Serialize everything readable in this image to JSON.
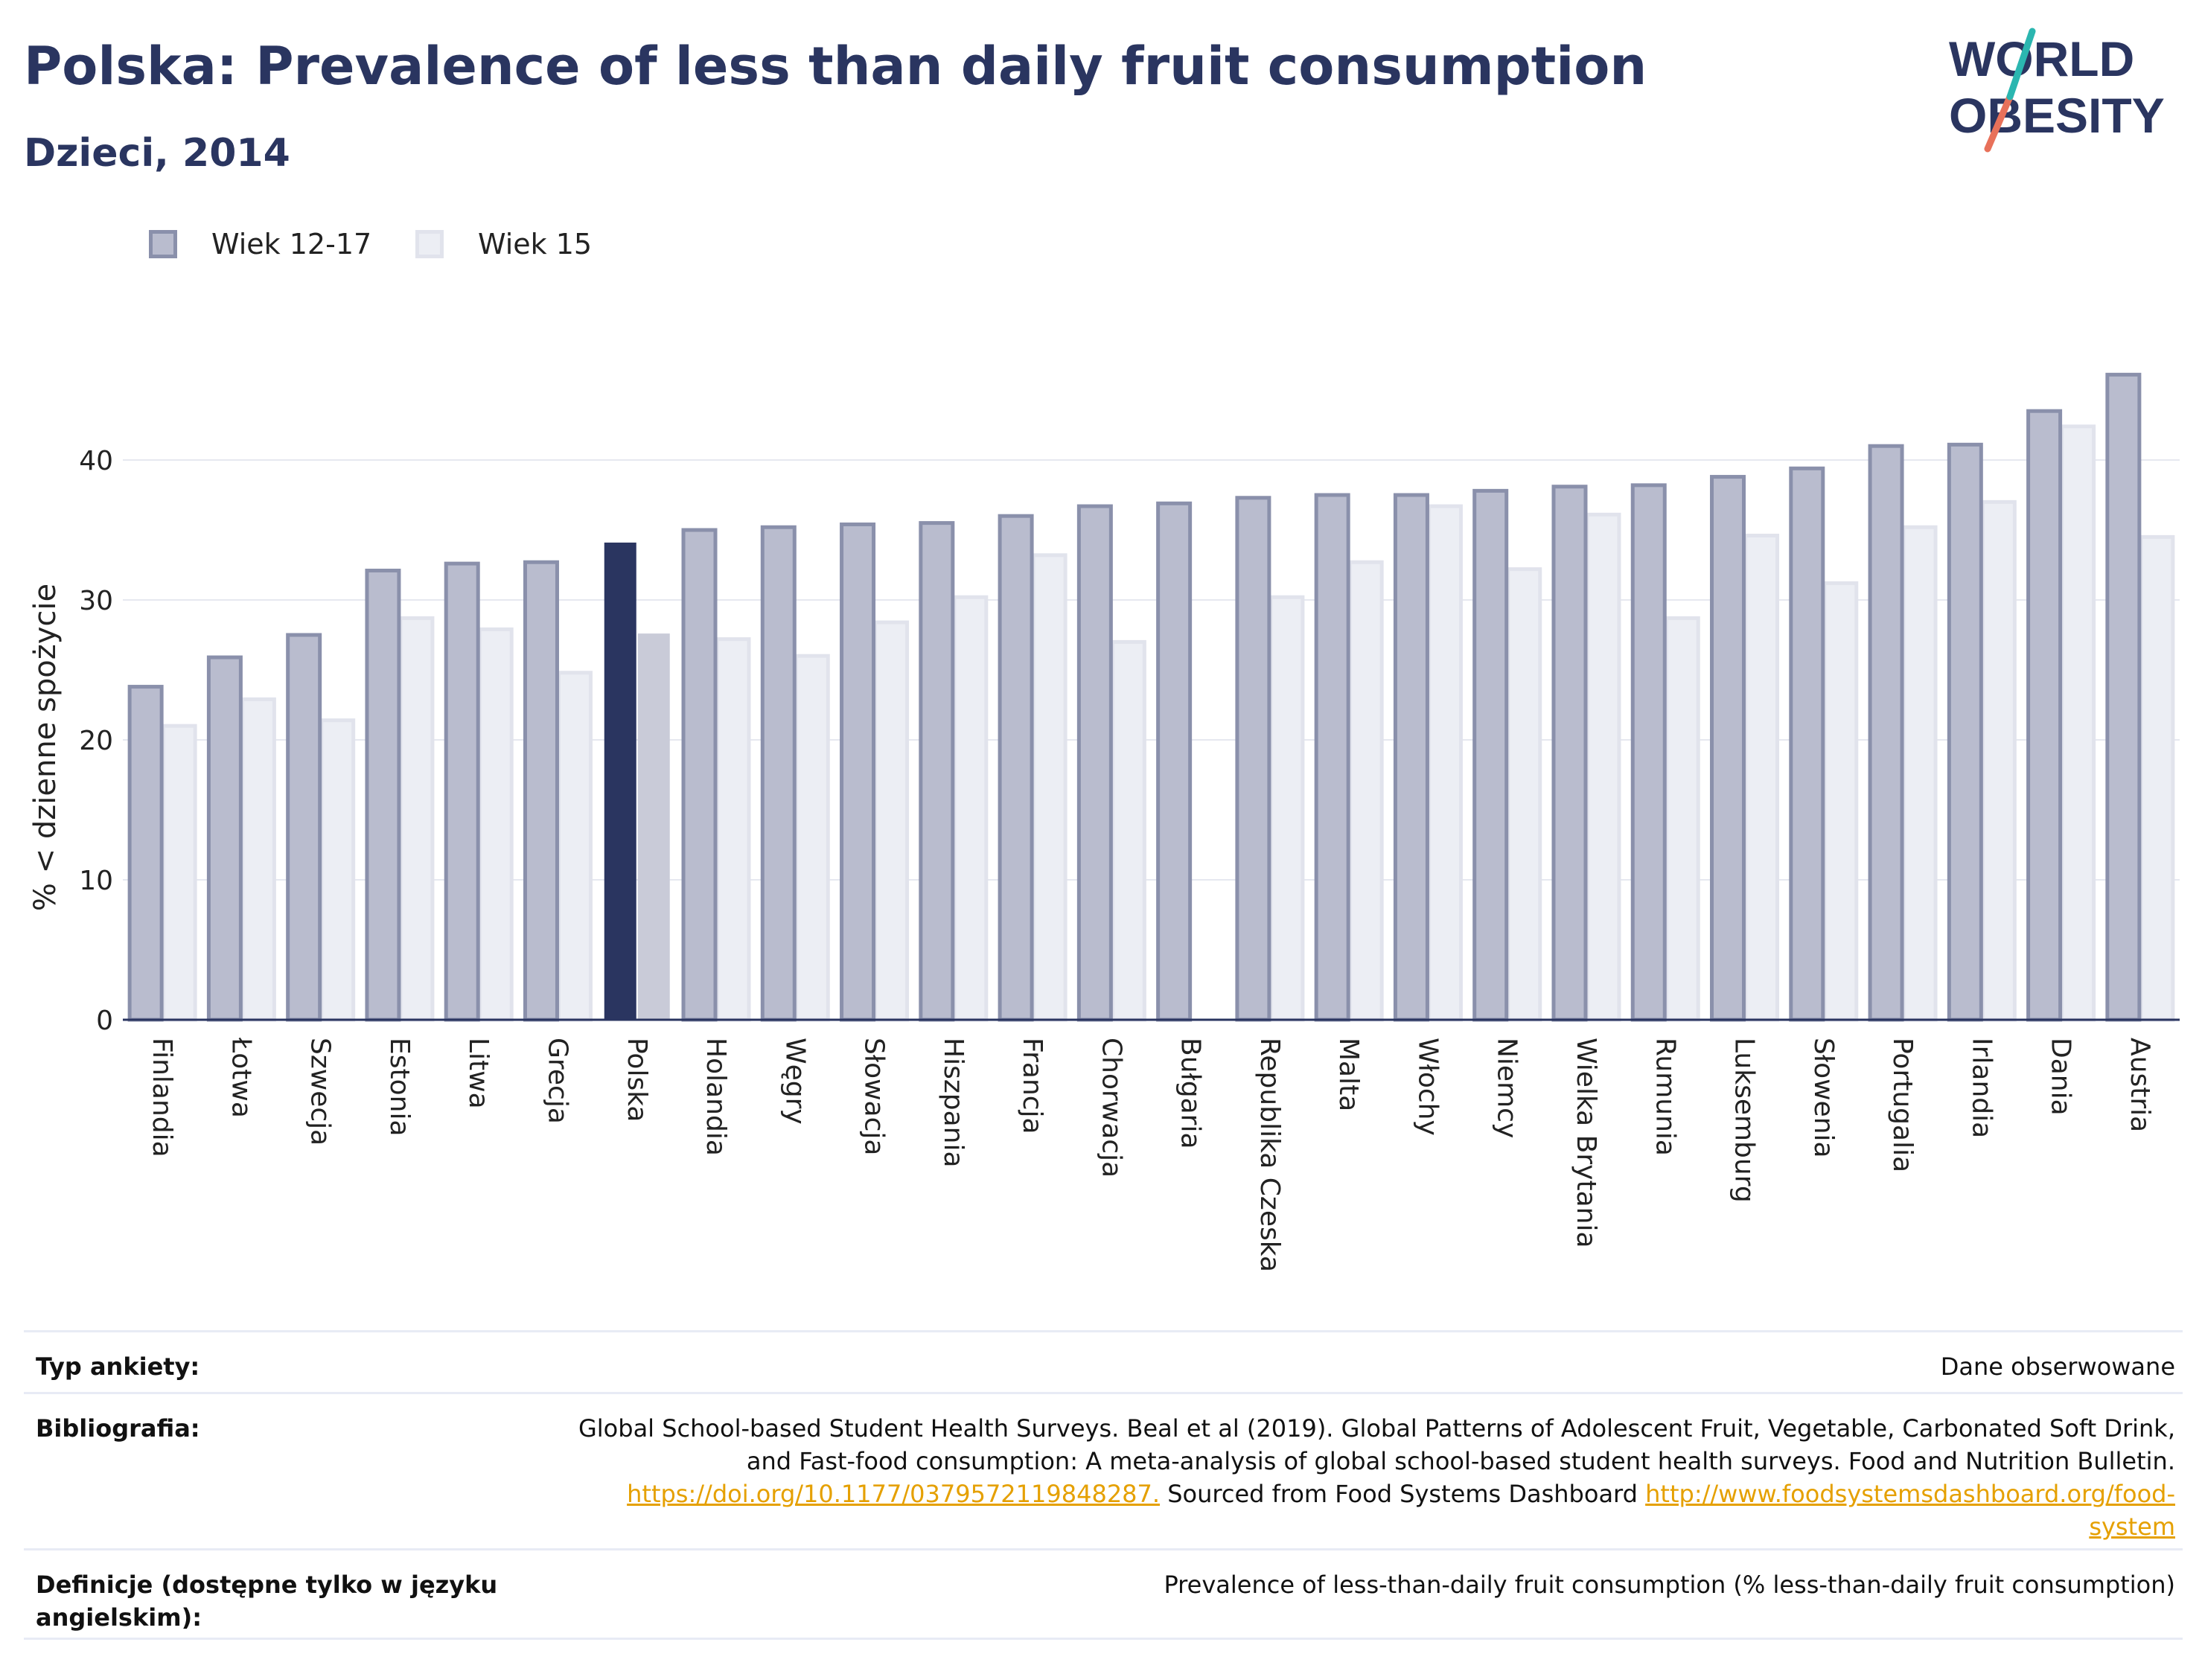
{
  "header": {
    "title": "Polska: Prevalence of less than daily fruit consumption",
    "subtitle": "Dzieci, 2014"
  },
  "logo": {
    "line1": "WORLD",
    "line2": "OBESITY",
    "accent_colors": [
      "#2bb6b0",
      "#e8715a"
    ]
  },
  "colors": {
    "series1": "#b9bcce",
    "series1_border": "#8a90ab",
    "series2": "#eceef4",
    "series2_border": "#e1e3ec",
    "highlight1": "#2a3560",
    "highlight2": "#c9cbd8",
    "axis": "#2a3560",
    "grid": "#e6e8f0",
    "text": "#222222"
  },
  "chart_data": {
    "type": "bar",
    "ylabel": "% < dzienne spożycie",
    "ylim": [
      0,
      50
    ],
    "yticks": [
      0,
      10,
      20,
      30,
      40
    ],
    "grid": true,
    "legend_position": "top-left",
    "highlight_category": "Polska",
    "categories": [
      "Finlandia",
      "Łotwa",
      "Szwecja",
      "Estonia",
      "Litwa",
      "Grecja",
      "Polska",
      "Holandia",
      "Węgry",
      "Słowacja",
      "Hiszpania",
      "Francja",
      "Chorwacja",
      "Bułgaria",
      "Republika Czeska",
      "Malta",
      "Włochy",
      "Niemcy",
      "Wielka Brytania",
      "Rumunia",
      "Luksemburg",
      "Słowenia",
      "Portugalia",
      "Irlandia",
      "Dania",
      "Austria"
    ],
    "series": [
      {
        "name": "Wiek 12-17",
        "values": [
          23.8,
          25.9,
          27.5,
          32.1,
          32.6,
          32.7,
          34.1,
          35.0,
          35.2,
          35.4,
          35.5,
          36.0,
          36.7,
          36.9,
          37.3,
          37.5,
          37.5,
          37.8,
          38.1,
          38.2,
          38.8,
          39.4,
          41.0,
          41.1,
          43.5,
          46.1
        ]
      },
      {
        "name": "Wiek 15",
        "values": [
          21.0,
          22.9,
          21.4,
          28.7,
          27.9,
          24.8,
          27.6,
          27.2,
          26.0,
          28.4,
          30.2,
          33.2,
          27.0,
          null,
          30.2,
          32.7,
          36.7,
          32.2,
          36.1,
          28.7,
          34.6,
          31.2,
          35.2,
          37.0,
          42.4,
          34.5
        ]
      }
    ]
  },
  "info": {
    "survey_label": "Typ ankiety:",
    "survey_value": "Dane obserwowane",
    "biblio_label": "Bibliografia:",
    "biblio_line1": "Global School-based Student Health Surveys. Beal et al (2019). Global Patterns of Adolescent Fruit, Vegetable, Carbonated Soft Drink,",
    "biblio_line2": "and Fast-food consumption: A meta-analysis of global school-based student health surveys. Food and Nutrition Bulletin.",
    "biblio_link1": "https://doi.org/10.1177/0379572119848287.",
    "biblio_mid": " Sourced from Food Systems Dashboard ",
    "biblio_link2a": "http://www.foodsystemsdashboard.org/food-",
    "biblio_link2b": "system",
    "def_label": "Definicje (dostępne tylko w języku angielskim):",
    "def_value": "Prevalence of less-than-daily fruit consumption (% less-than-daily fruit consumption)"
  }
}
